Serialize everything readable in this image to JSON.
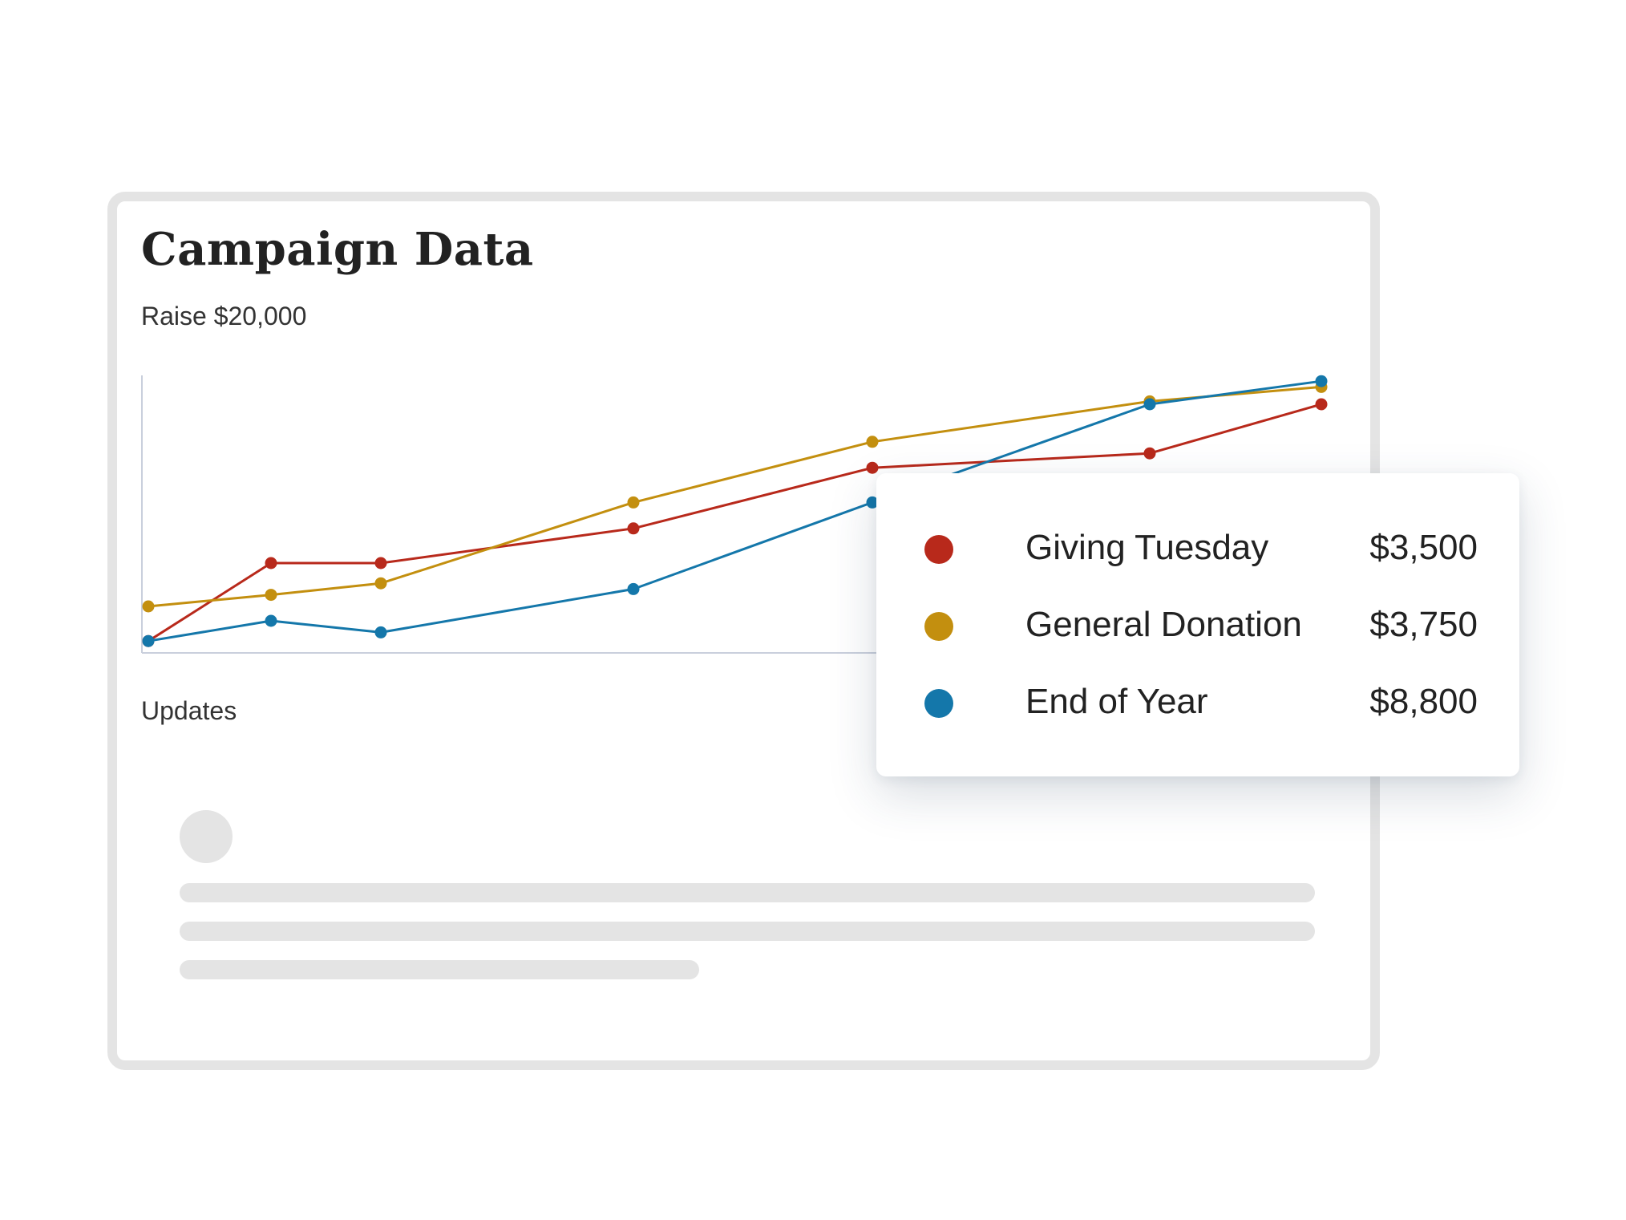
{
  "card": {
    "title": "Campaign Data",
    "subtitle": "Raise $20,000",
    "updates_label": "Updates"
  },
  "chart_data": {
    "type": "line",
    "x": [
      1,
      2,
      3,
      4,
      5,
      6,
      7
    ],
    "series": [
      {
        "name": "Giving Tuesday",
        "color": "#b8291b",
        "x": [
          1,
          2,
          3,
          4,
          5,
          6,
          7
        ],
        "values": [
          0.3,
          3.0,
          3.0,
          4.2,
          6.3,
          6.8,
          8.5
        ]
      },
      {
        "name": "General Donation",
        "color": "#c38f0f",
        "x": [
          1,
          2,
          3,
          4,
          5,
          6,
          7
        ],
        "values": [
          1.5,
          1.9,
          2.3,
          5.1,
          7.2,
          8.6,
          9.1
        ]
      },
      {
        "name": "End of Year",
        "color": "#1477aa",
        "x": [
          1,
          2,
          3,
          4,
          5,
          6,
          7
        ],
        "values": [
          0.3,
          1.0,
          0.6,
          2.1,
          5.1,
          8.5,
          9.3
        ]
      }
    ],
    "ylim": [
      0,
      9.5
    ],
    "grid": false,
    "legend": "right"
  },
  "legend": {
    "items": [
      {
        "label": "Giving Tuesday",
        "value": "$3,500",
        "color": "#b8291b"
      },
      {
        "label": "General Donation",
        "value": "$3,750",
        "color": "#c38f0f"
      },
      {
        "label": "End of Year",
        "value": "$8,800",
        "color": "#1477aa"
      }
    ]
  }
}
